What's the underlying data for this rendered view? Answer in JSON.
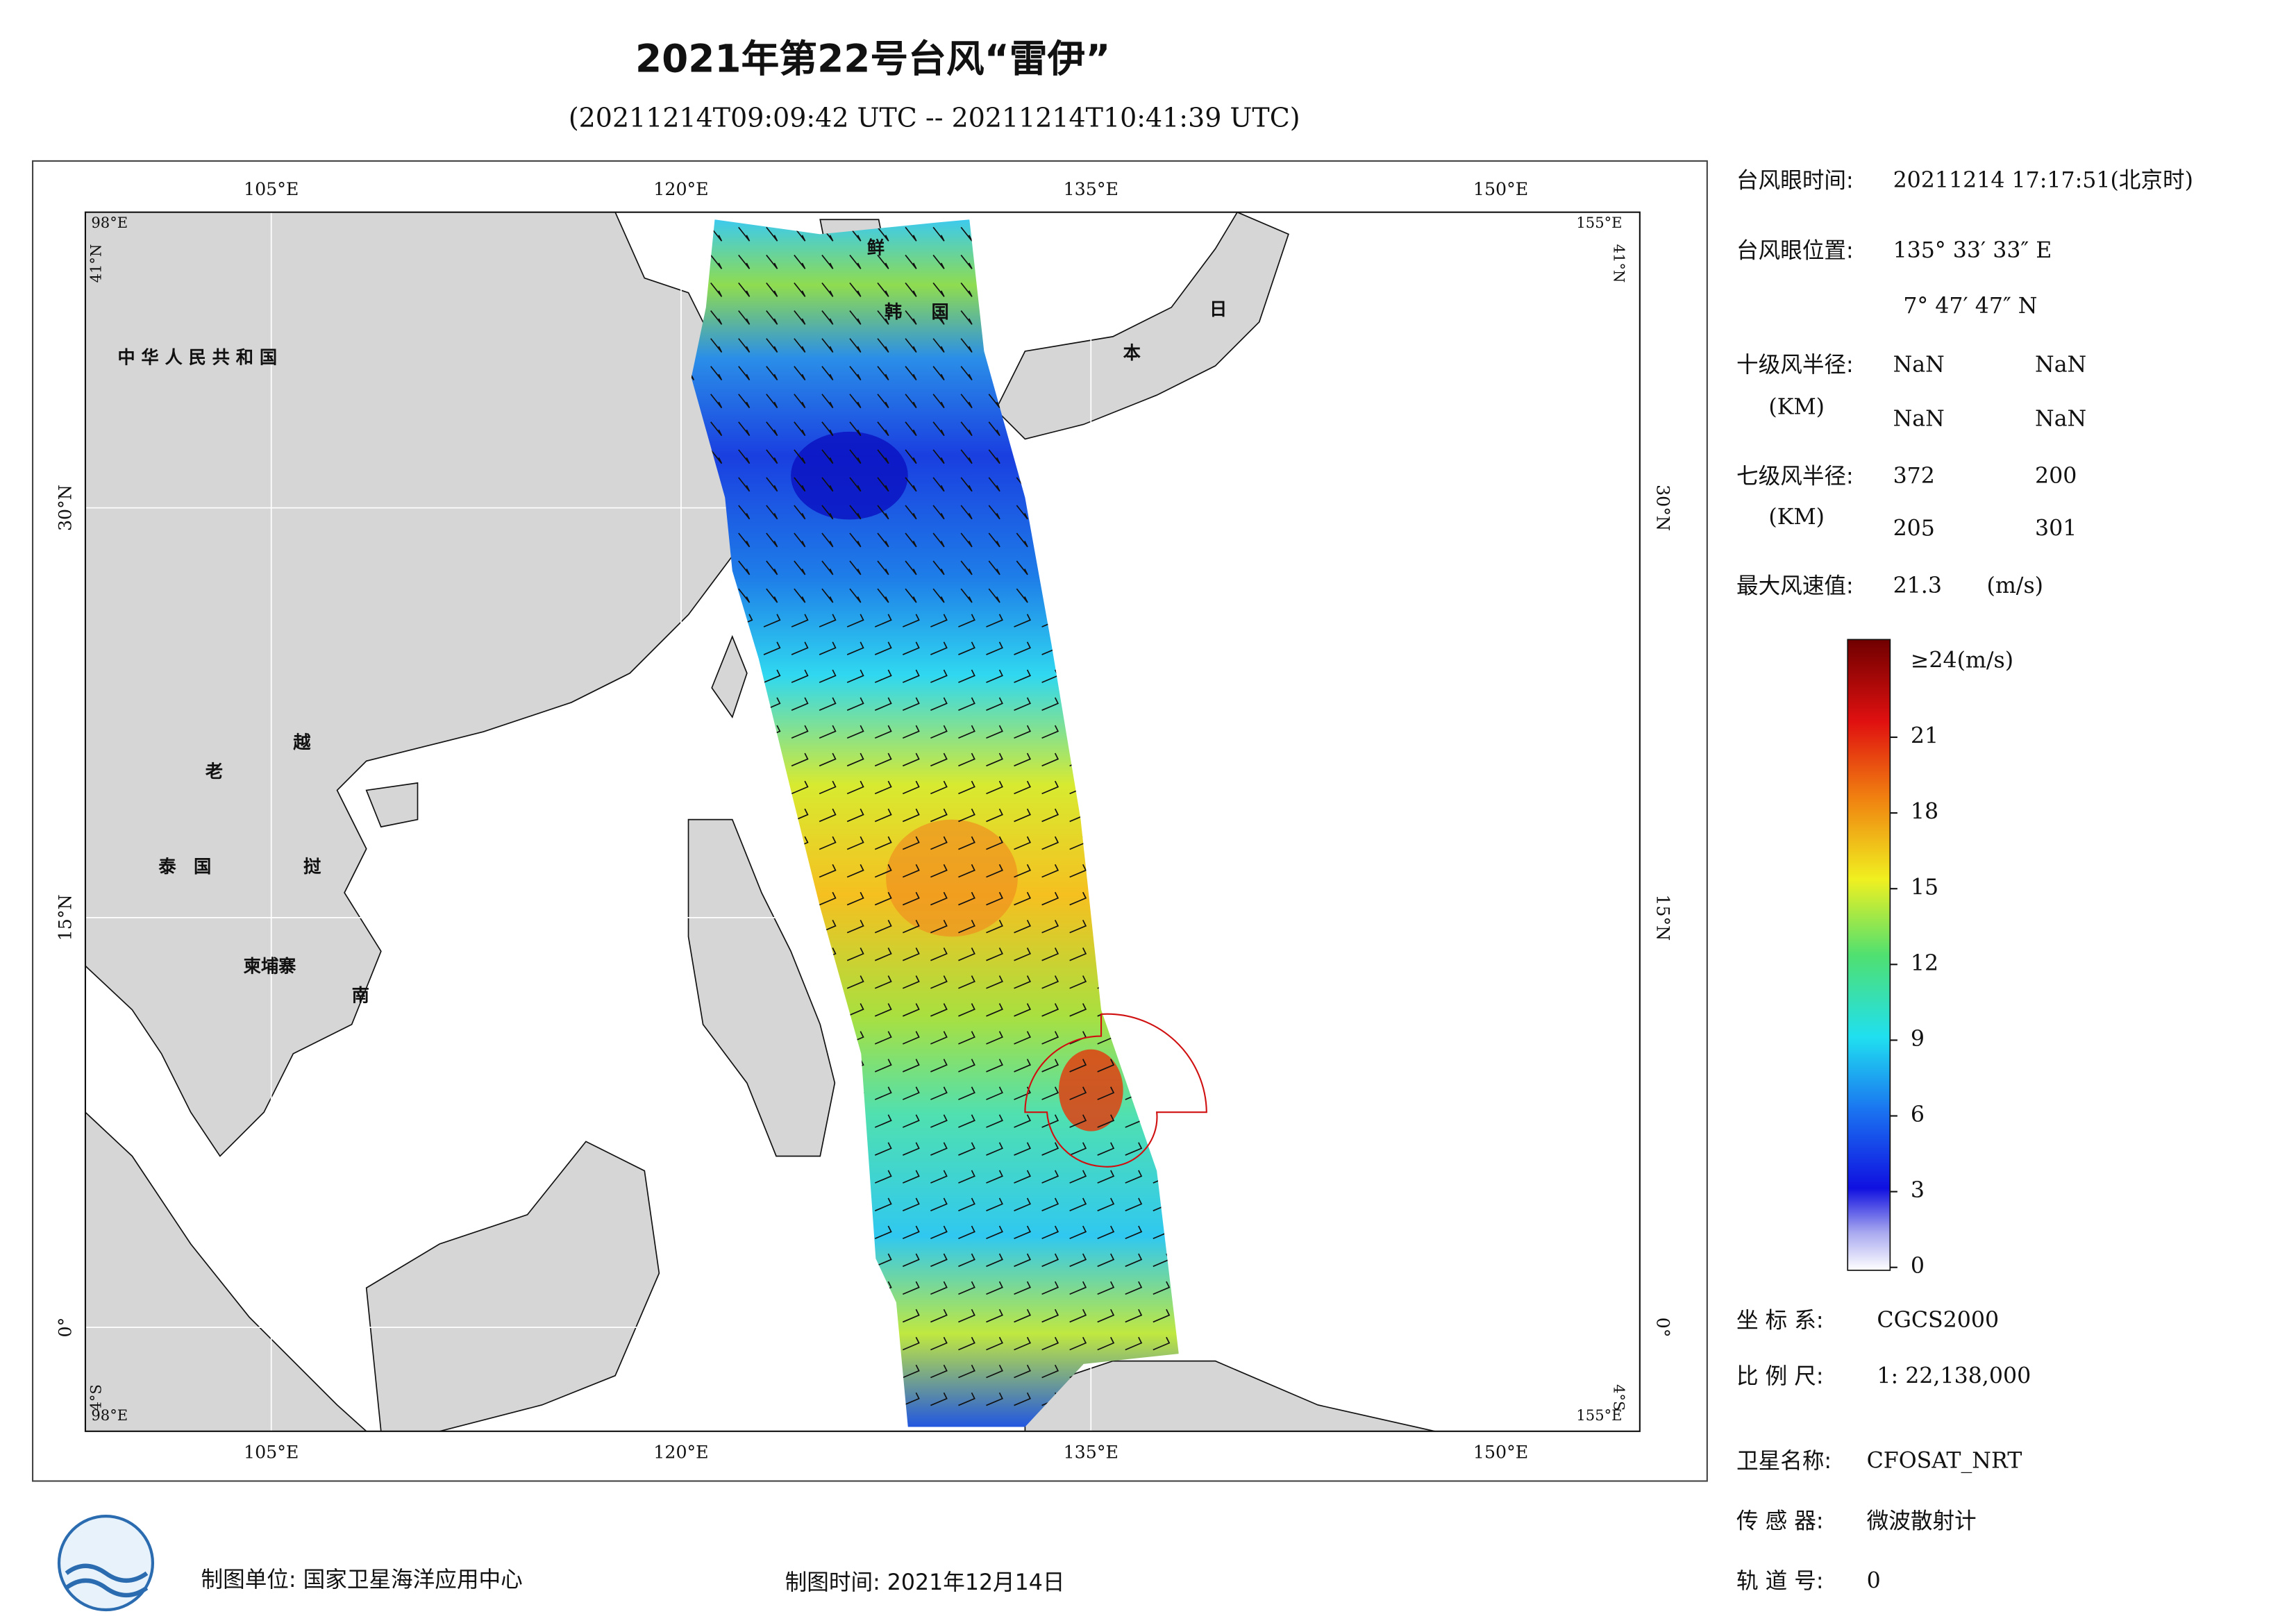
{
  "title": "2021年第22号台风“雷伊”",
  "subtitle": "(20211214T09:09:42 UTC -- 20211214T10:41:39 UTC)",
  "map": {
    "lon_labels": [
      "105°E",
      "120°E",
      "135°E",
      "150°E"
    ],
    "lat_labels": [
      "30°N",
      "15°N",
      "0°"
    ],
    "corner_labels": [
      "98°E",
      "41°N",
      "155°E",
      "41°N",
      "4°S",
      "98°E",
      "155°E",
      "4°S"
    ],
    "place_labels": [
      "中 华 人 民 共 和 国",
      "鲜",
      "韩",
      "国",
      "日",
      "本",
      "老",
      "越",
      "泰",
      "国",
      "挝",
      "柬埔寨",
      "南"
    ]
  },
  "info": {
    "eye_time": {
      "label": "台风眼时间:",
      "value": "20211214 17:17:51(北京时)"
    },
    "eye_position": {
      "label": "台风眼位置:",
      "lon": "135° 33′ 33″ E",
      "lat": "7° 47′ 47″ N"
    },
    "r10": {
      "label": "十级风半径:",
      "unit": "(KM)",
      "values": [
        "NaN",
        "NaN",
        "NaN",
        "NaN"
      ]
    },
    "r7": {
      "label": "七级风半径:",
      "unit": "(KM)",
      "values": [
        "372",
        "200",
        "205",
        "301"
      ]
    },
    "max_wind": {
      "label": "最大风速值:",
      "value": "21.3",
      "unit": "(m/s)"
    },
    "colorbar": {
      "lim": [
        0,
        24
      ],
      "ticks": [
        0,
        3,
        6,
        9,
        12,
        15,
        18,
        21
      ],
      "top_label": "≥24(m/s)"
    },
    "crs": {
      "label": "坐 标 系:",
      "value": "CGCS2000"
    },
    "scale": {
      "label": "比 例 尺:",
      "value": "1: 22,138,000"
    },
    "satellite": {
      "label": "卫星名称:",
      "value": "CFOSAT_NRT"
    },
    "sensor": {
      "label": "传 感 器:",
      "value": "微波散射计"
    },
    "orbit": {
      "label": "轨 道 号:",
      "value": "0"
    }
  },
  "footer": {
    "unit": "制图单位: 国家卫星海洋应用中心",
    "date": "制图时间: 2021年12月14日"
  }
}
